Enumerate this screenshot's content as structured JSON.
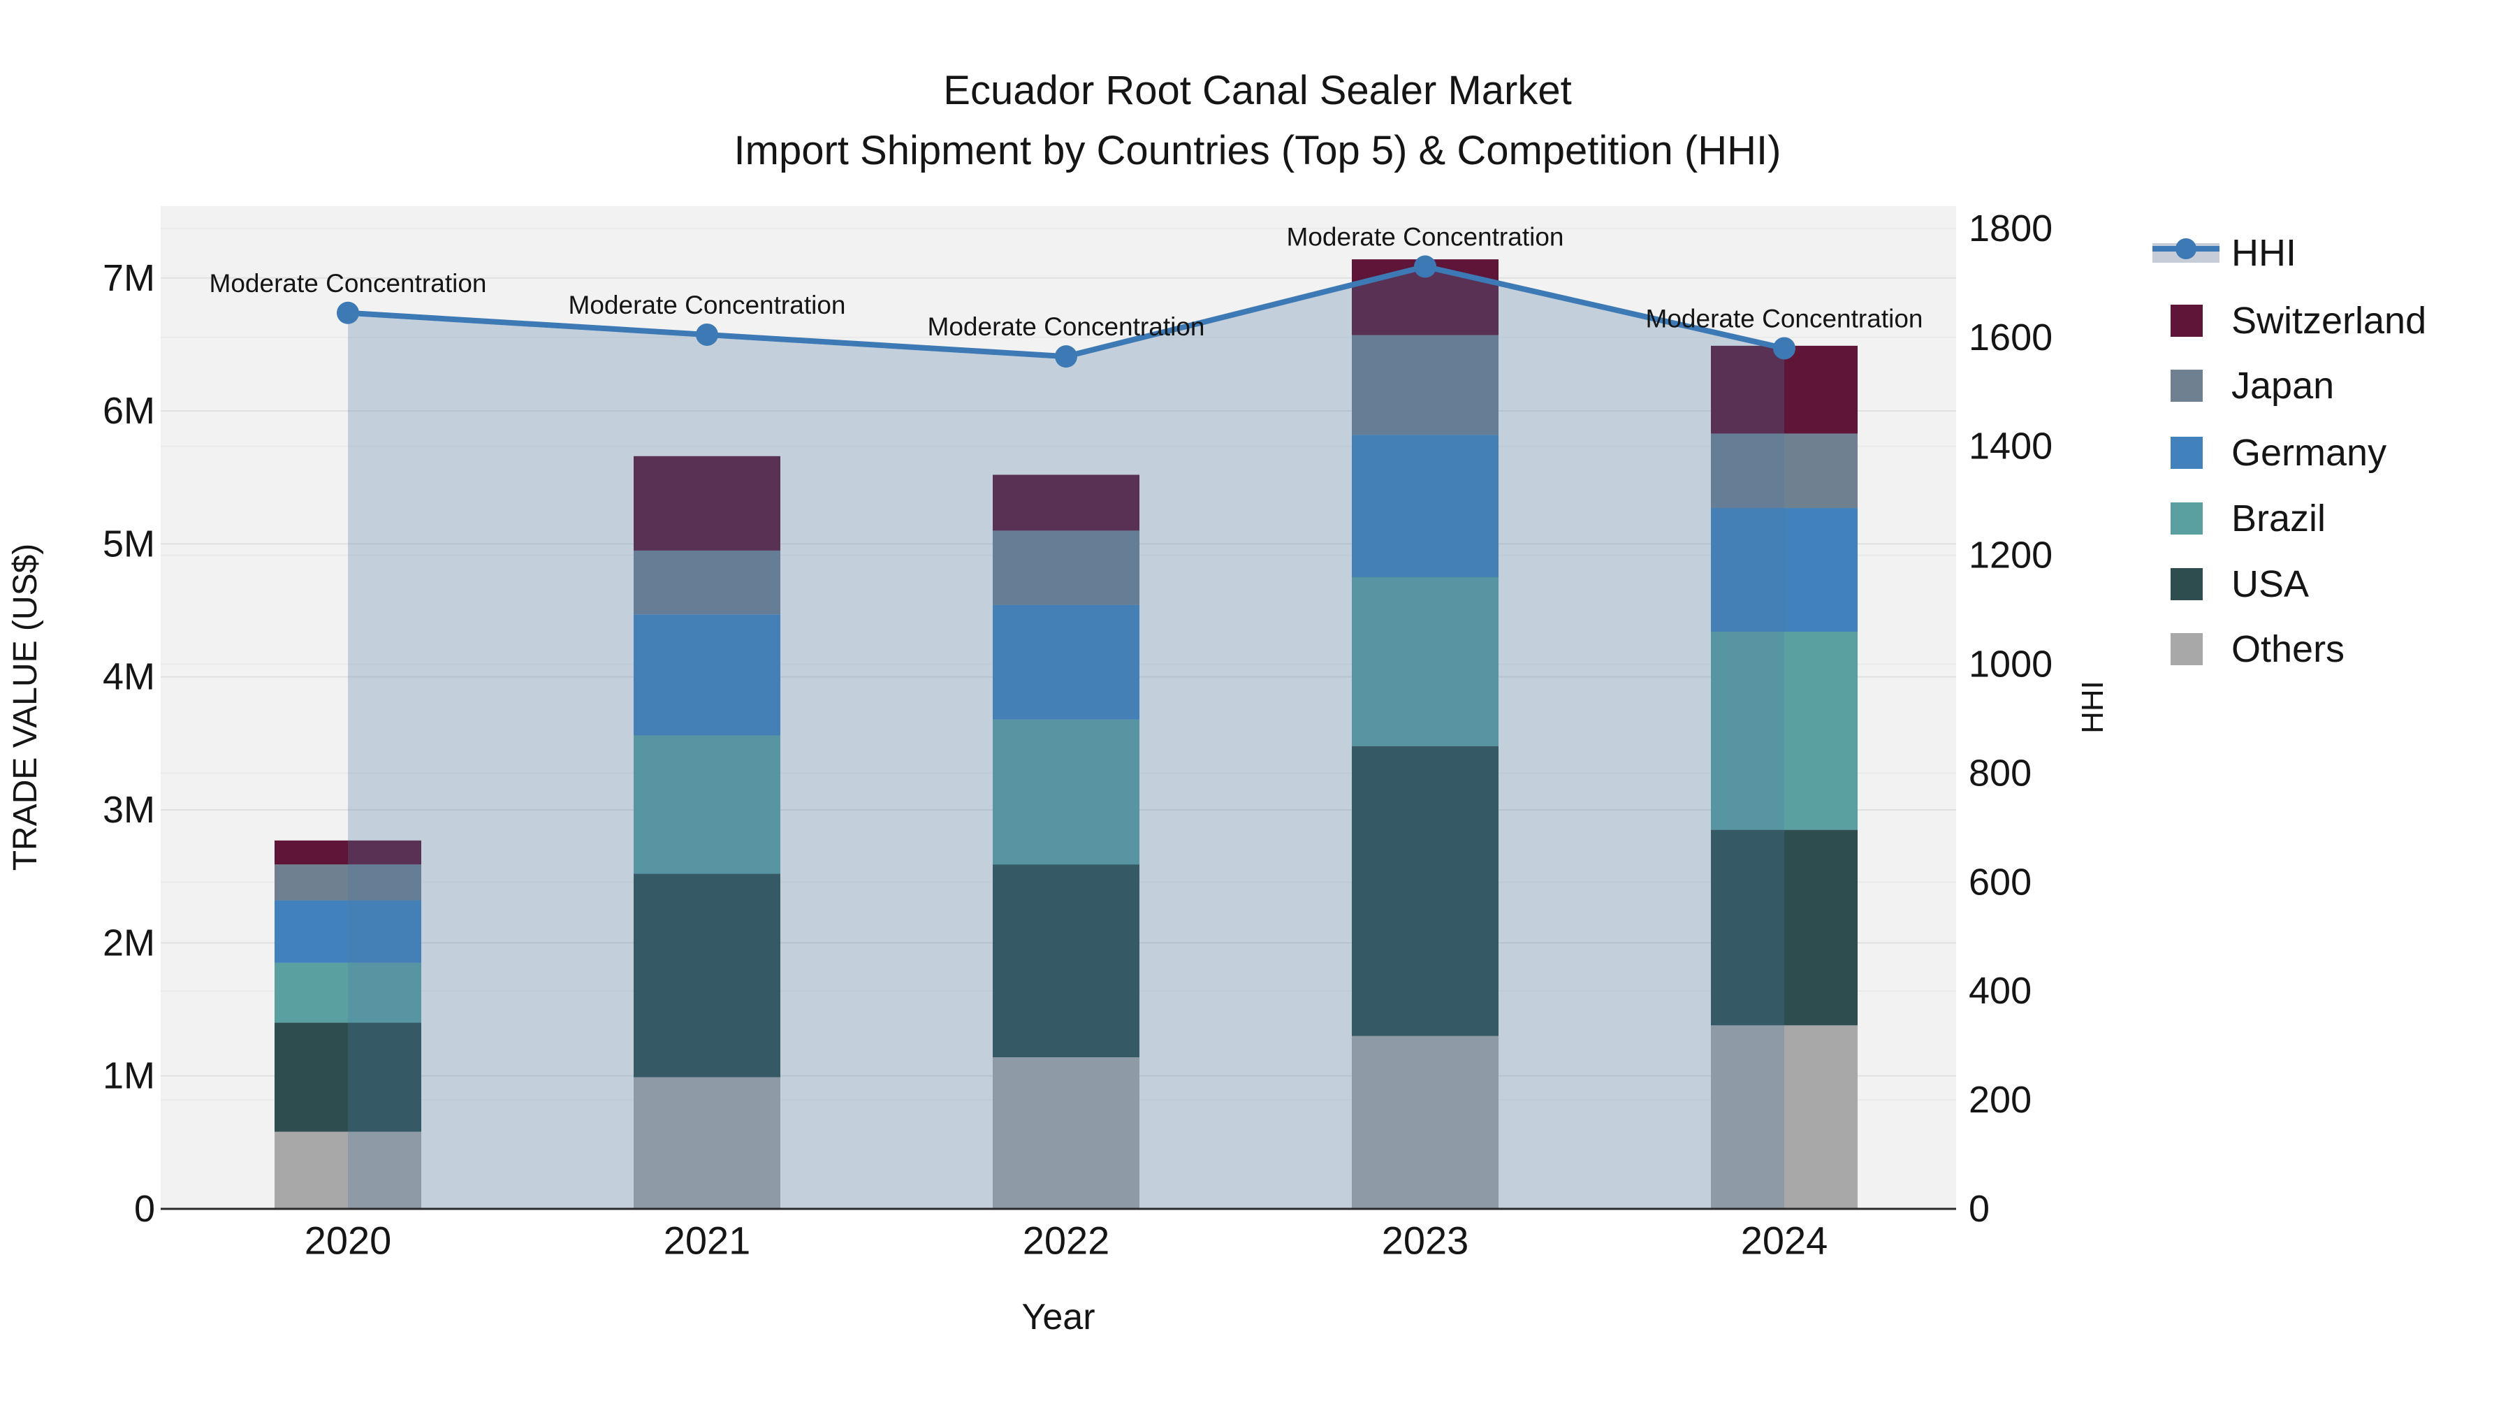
{
  "title": {
    "line1": "Ecuador Root Canal Sealer Market",
    "line2": "Import Shipment by Countries (Top 5) & Competition (HHI)"
  },
  "axes": {
    "y_left": {
      "label": "TRADE VALUE (US$)",
      "ticks": [
        "0",
        "1M",
        "2M",
        "3M",
        "4M",
        "5M",
        "6M",
        "7M"
      ]
    },
    "y_right": {
      "label": "HHI",
      "ticks": [
        "0",
        "200",
        "400",
        "600",
        "800",
        "1000",
        "1200",
        "1400",
        "1600",
        "1800"
      ]
    },
    "x": {
      "label": "Year",
      "categories": [
        "2020",
        "2021",
        "2022",
        "2023",
        "2024"
      ]
    }
  },
  "legend": {
    "items": [
      {
        "label": "HHI",
        "type": "line",
        "color": "#3d7ab5",
        "band": "#c6cdd9"
      },
      {
        "label": "Switzerland",
        "type": "swatch",
        "color": "#5e1537"
      },
      {
        "label": "Japan",
        "type": "swatch",
        "color": "#6f8090"
      },
      {
        "label": "Germany",
        "type": "swatch",
        "color": "#4282bc"
      },
      {
        "label": "Brazil",
        "type": "swatch",
        "color": "#5ba0a0"
      },
      {
        "label": "USA",
        "type": "swatch",
        "color": "#2e4d4e"
      },
      {
        "label": "Others",
        "type": "swatch",
        "color": "#a8a8a8"
      }
    ]
  },
  "chart_data": {
    "type": "bar",
    "subtype": "stacked-bars-with-line-overlay",
    "title": "Ecuador Root Canal Sealer Market — Import Shipment by Countries (Top 5) & Competition (HHI)",
    "categories": [
      "2020",
      "2021",
      "2022",
      "2023",
      "2024"
    ],
    "value_unit": "million US$",
    "series": [
      {
        "name": "Others",
        "color": "#a8a8a8",
        "values": [
          0.58,
          0.99,
          1.14,
          1.3,
          1.38
        ]
      },
      {
        "name": "USA",
        "color": "#2e4d4e",
        "values": [
          0.82,
          1.53,
          1.45,
          2.18,
          1.47
        ]
      },
      {
        "name": "Brazil",
        "color": "#5ba0a0",
        "values": [
          0.45,
          1.04,
          1.09,
          1.27,
          1.49
        ]
      },
      {
        "name": "Germany",
        "color": "#4282bc",
        "values": [
          0.47,
          0.91,
          0.86,
          1.07,
          0.93
        ]
      },
      {
        "name": "Japan",
        "color": "#6f8090",
        "values": [
          0.27,
          0.48,
          0.56,
          0.75,
          0.56
        ]
      },
      {
        "name": "Switzerland",
        "color": "#5e1537",
        "values": [
          0.18,
          0.71,
          0.42,
          0.57,
          0.66
        ]
      }
    ],
    "bar_totals": [
      2.77,
      5.66,
      5.52,
      7.14,
      6.49
    ],
    "line": {
      "name": "HHI",
      "axis": "right",
      "color": "#3d7ab5",
      "values": [
        1645,
        1605,
        1565,
        1730,
        1580
      ],
      "area_fill": "#4d7ba6",
      "area_opacity": 0.28,
      "annotations": [
        "Moderate Concentration",
        "Moderate Concentration",
        "Moderate Concentration",
        "Moderate Concentration",
        "Moderate Concentration"
      ]
    },
    "xlabel": "Year",
    "ylabel_left": "TRADE VALUE (US$)",
    "ylabel_right": "HHI",
    "ylim_left_m": [
      0,
      7.54
    ],
    "ylim_right": [
      0,
      1841
    ],
    "grid": true,
    "legend_position": "right",
    "plot_bg": "#f2f2f2",
    "grid_color_major": "#e0e0e0",
    "grid_color_minor": "#eaeaea",
    "axis_line_color": "#2a2a2a"
  }
}
